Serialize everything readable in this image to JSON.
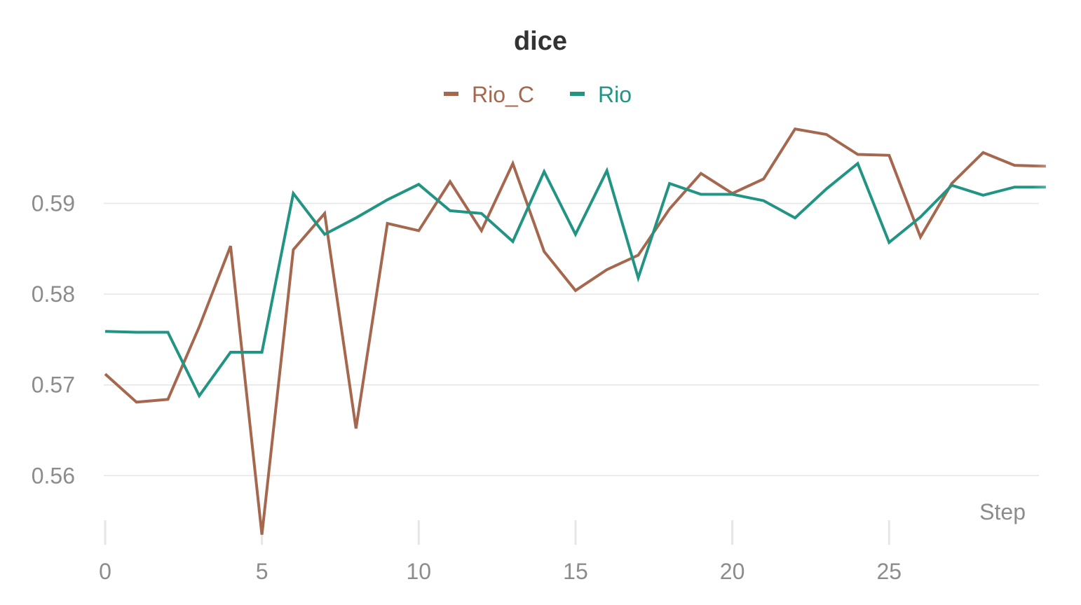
{
  "chart_data": {
    "type": "line",
    "title": "dice",
    "xlabel": "Step",
    "ylabel": "",
    "xlim": [
      0,
      30
    ],
    "ylim": [
      0.553,
      0.5985
    ],
    "x_ticks": [
      0,
      5,
      10,
      15,
      20,
      25
    ],
    "y_ticks": [
      0.56,
      0.57,
      0.58,
      0.59
    ],
    "x_tick_labels": [
      "0",
      "5",
      "10",
      "15",
      "20",
      "25"
    ],
    "y_tick_labels": [
      "0.56",
      "0.57",
      "0.58",
      "0.59"
    ],
    "grid": true,
    "legend_position": "top-center",
    "x": [
      0,
      1,
      2,
      3,
      4,
      5,
      6,
      7,
      8,
      9,
      10,
      11,
      12,
      13,
      14,
      15,
      16,
      17,
      18,
      19,
      20,
      21,
      22,
      23,
      24,
      25,
      26,
      27,
      28,
      29,
      30
    ],
    "series": [
      {
        "name": "Rio_C",
        "color": "#a5674d",
        "values": [
          0.5712,
          0.5681,
          0.5684,
          0.5764,
          0.5853,
          0.5535,
          0.5849,
          0.5889,
          0.5652,
          0.5878,
          0.587,
          0.5924,
          0.587,
          0.5944,
          0.5847,
          0.5804,
          0.5827,
          0.5843,
          0.5894,
          0.5933,
          0.5911,
          0.5927,
          0.5982,
          0.5976,
          0.5954,
          0.5953,
          0.5863,
          0.5922,
          0.5956,
          0.5942,
          0.5941
        ]
      },
      {
        "name": "Rio",
        "color": "#229484",
        "values": [
          0.5759,
          0.5758,
          0.5758,
          0.5688,
          0.5736,
          0.5736,
          0.5911,
          0.5866,
          0.5884,
          0.5904,
          0.5921,
          0.5892,
          0.5889,
          0.5858,
          0.5935,
          0.5866,
          0.5936,
          0.5818,
          0.5922,
          0.591,
          0.591,
          0.5903,
          0.5884,
          0.5916,
          0.5944,
          0.5857,
          0.5885,
          0.592,
          0.5909,
          0.5918,
          0.5918
        ]
      }
    ]
  }
}
